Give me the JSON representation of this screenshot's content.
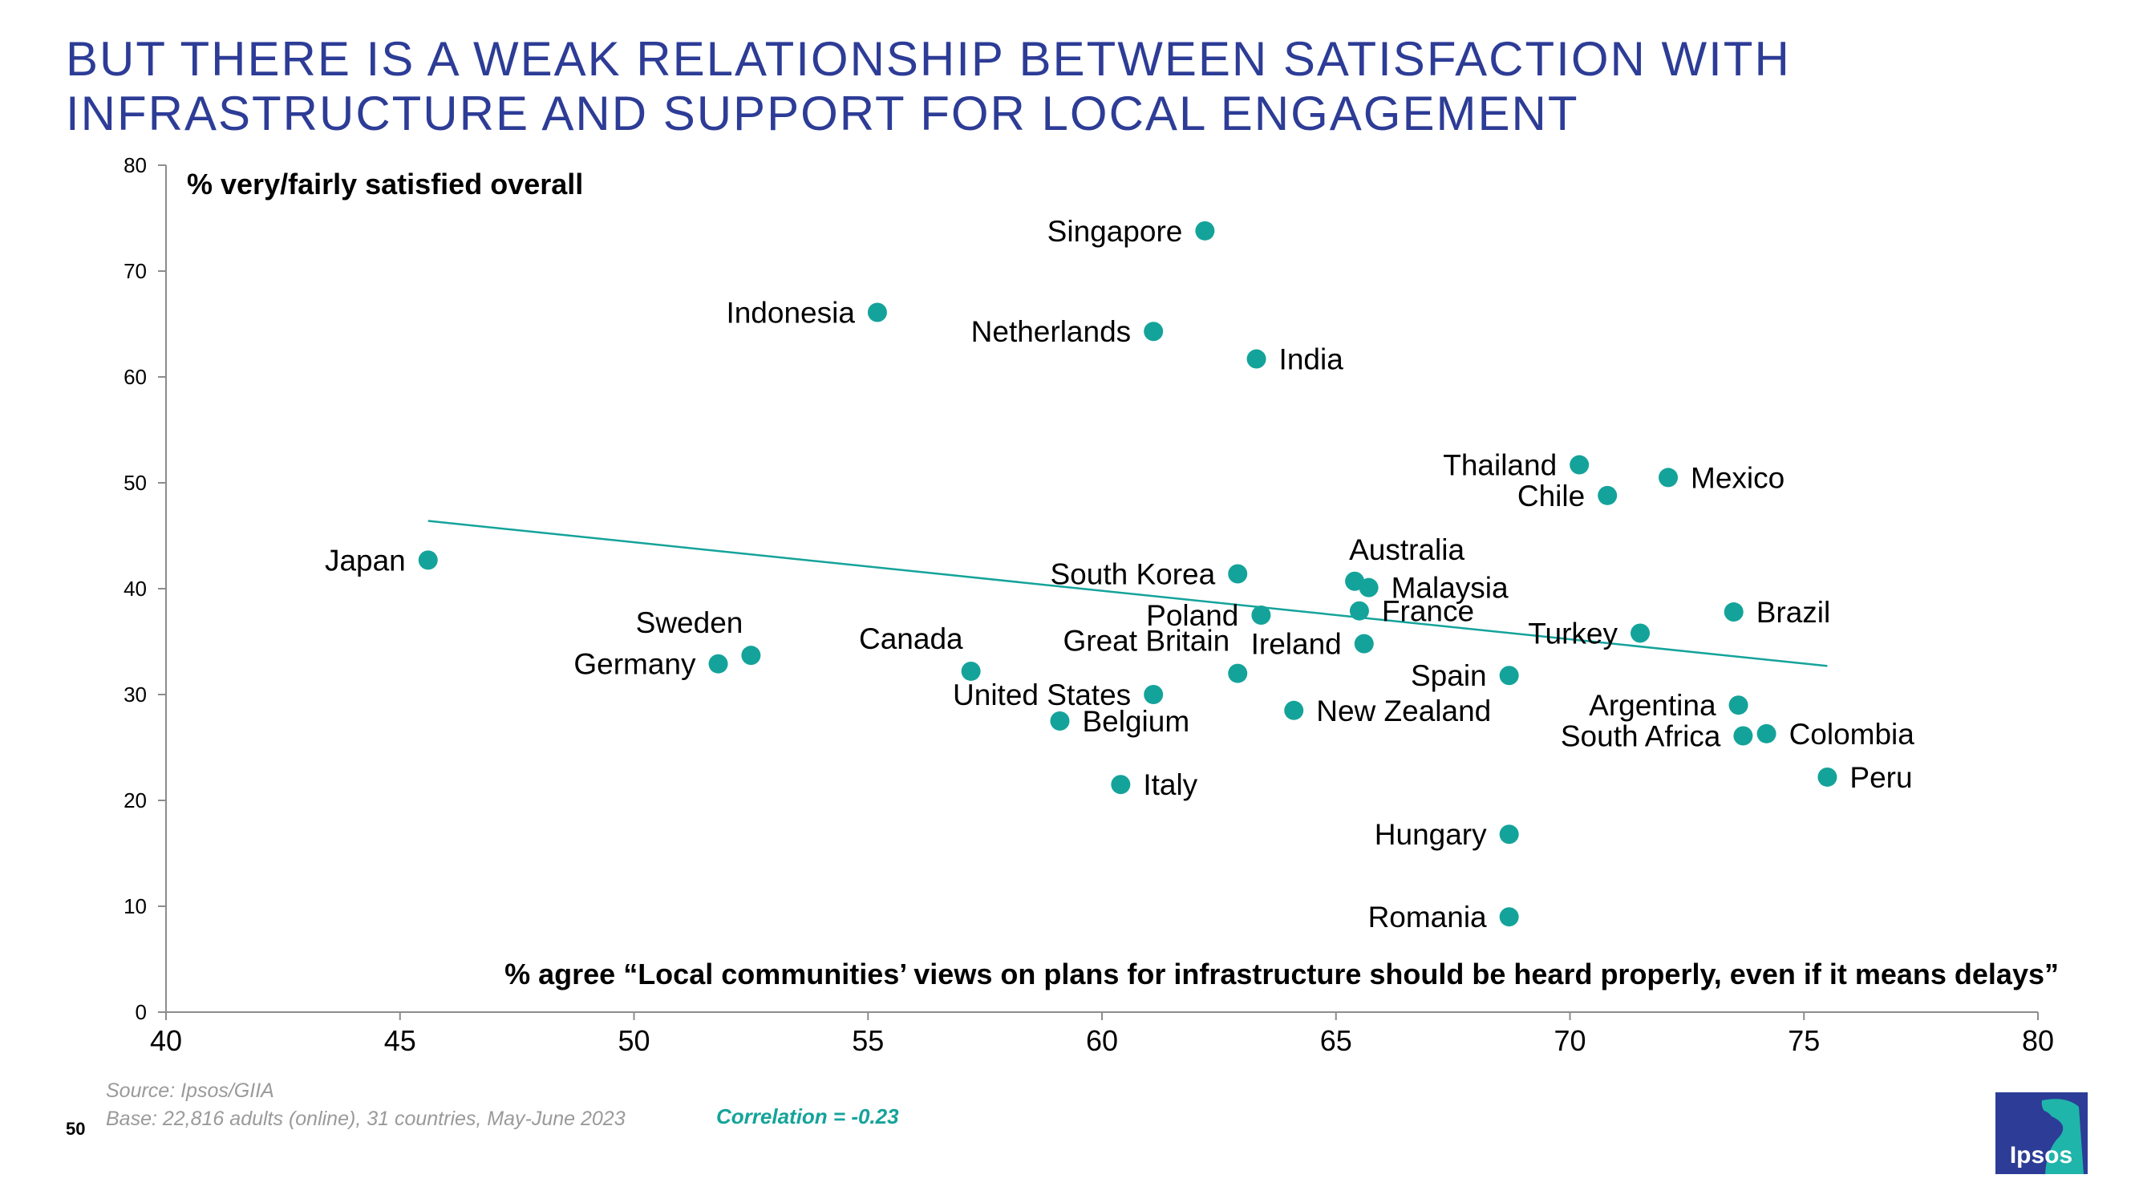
{
  "title_lines": [
    "BUT THERE IS A WEAK RELATIONSHIP BETWEEN SATISFACTION WITH",
    "INFRASTRUCTURE AND SUPPORT FOR LOCAL ENGAGEMENT"
  ],
  "source": "Source: Ipsos/GIIA",
  "base": "Base: 22,816 adults (online), 31 countries, May-June 2023",
  "correlation": "Correlation = -0.23",
  "page_number": "50",
  "logo_text": "Ipsos",
  "colors": {
    "title": "#2d3c96",
    "point": "#14a39a",
    "trend": "#14a39a",
    "correlation": "#14a39a",
    "logo_bg": "#2d3c96",
    "logo_accent": "#1fb5aa"
  },
  "chart_data": {
    "type": "scatter",
    "title": "",
    "ylabel": "% very/fairly satisfied overall",
    "xlabel": "% agree “Local communities’ views on plans for infrastructure should be heard properly, even if it means delays”",
    "xlim": [
      40,
      80
    ],
    "ylim": [
      0,
      80
    ],
    "xticks": [
      40,
      45,
      50,
      55,
      60,
      65,
      70,
      75,
      80
    ],
    "yticks": [
      0,
      10,
      20,
      30,
      40,
      50,
      60,
      70,
      80
    ],
    "trendline": {
      "x": [
        45.6,
        75.5
      ],
      "y": [
        46.4,
        32.7
      ]
    },
    "points": [
      {
        "label": "Singapore",
        "x": 62.2,
        "y": 73.8,
        "pos": "left"
      },
      {
        "label": "Indonesia",
        "x": 55.2,
        "y": 66.1,
        "pos": "left"
      },
      {
        "label": "Netherlands",
        "x": 61.1,
        "y": 64.3,
        "pos": "left"
      },
      {
        "label": "India",
        "x": 63.3,
        "y": 61.7,
        "pos": "right"
      },
      {
        "label": "Thailand",
        "x": 70.2,
        "y": 51.7,
        "pos": "left"
      },
      {
        "label": "Mexico",
        "x": 72.1,
        "y": 50.5,
        "pos": "right"
      },
      {
        "label": "Chile",
        "x": 70.8,
        "y": 48.8,
        "pos": "left"
      },
      {
        "label": "Japan",
        "x": 45.6,
        "y": 42.7,
        "pos": "left"
      },
      {
        "label": "South Korea",
        "x": 62.9,
        "y": 41.4,
        "pos": "left"
      },
      {
        "label": "Australia",
        "x": 65.4,
        "y": 40.7,
        "pos": "above"
      },
      {
        "label": "Malaysia",
        "x": 65.7,
        "y": 40.1,
        "pos": "right"
      },
      {
        "label": "France",
        "x": 65.5,
        "y": 37.9,
        "pos": "right"
      },
      {
        "label": "Poland",
        "x": 63.4,
        "y": 37.5,
        "pos": "left"
      },
      {
        "label": "Brazil",
        "x": 73.5,
        "y": 37.8,
        "pos": "right"
      },
      {
        "label": "Turkey",
        "x": 71.5,
        "y": 35.8,
        "pos": "left"
      },
      {
        "label": "Ireland",
        "x": 65.6,
        "y": 34.8,
        "pos": "left"
      },
      {
        "label": "Sweden",
        "x": 52.5,
        "y": 33.7,
        "pos": "aboveleft"
      },
      {
        "label": "Germany",
        "x": 51.8,
        "y": 32.9,
        "pos": "left"
      },
      {
        "label": "Canada",
        "x": 57.2,
        "y": 32.2,
        "pos": "aboveleft"
      },
      {
        "label": "Great Britain",
        "x": 62.9,
        "y": 32.0,
        "pos": "aboveleft"
      },
      {
        "label": "Spain",
        "x": 68.7,
        "y": 31.8,
        "pos": "left"
      },
      {
        "label": "United States",
        "x": 61.1,
        "y": 30.0,
        "pos": "left"
      },
      {
        "label": "Argentina",
        "x": 73.6,
        "y": 29.0,
        "pos": "left"
      },
      {
        "label": "New Zealand",
        "x": 64.1,
        "y": 28.5,
        "pos": "right"
      },
      {
        "label": "Belgium",
        "x": 59.1,
        "y": 27.5,
        "pos": "right"
      },
      {
        "label": "Colombia",
        "x": 74.2,
        "y": 26.3,
        "pos": "right"
      },
      {
        "label": "South Africa",
        "x": 73.7,
        "y": 26.1,
        "pos": "left"
      },
      {
        "label": "Peru",
        "x": 75.5,
        "y": 22.2,
        "pos": "right"
      },
      {
        "label": "Italy",
        "x": 60.4,
        "y": 21.5,
        "pos": "right"
      },
      {
        "label": "Hungary",
        "x": 68.7,
        "y": 16.8,
        "pos": "left"
      },
      {
        "label": "Romania",
        "x": 68.7,
        "y": 9.0,
        "pos": "left"
      }
    ]
  }
}
